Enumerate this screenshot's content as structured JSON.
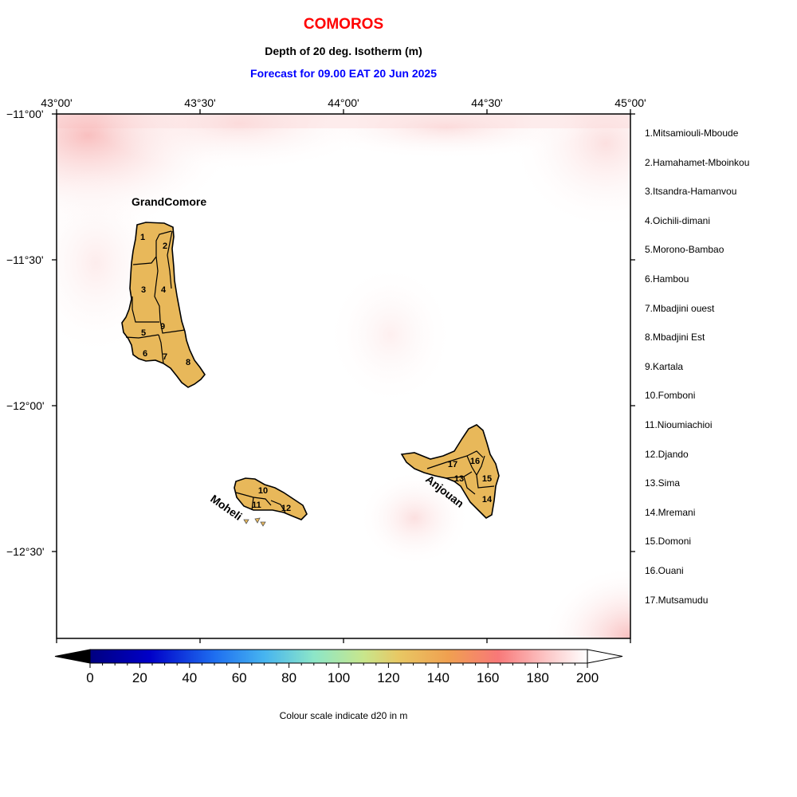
{
  "title": "COMOROS",
  "subtitle": "Depth of 20 deg. Isotherm (m)",
  "forecast": "Forecast for  09.00 EAT 20 Jun 2025",
  "colors": {
    "title": "#ff0000",
    "forecast": "#0000ff",
    "land": "#e8b85a",
    "background": "#ffffff"
  },
  "lon_labels": [
    "43°00'",
    "43°30'",
    "44°00'",
    "44°30'",
    "45°00'"
  ],
  "lat_labels": [
    "−11°00'",
    "−11°30'",
    "−12°00'",
    "−12°30'"
  ],
  "islands": [
    "GrandComore",
    "Moheli",
    "Anjouan"
  ],
  "regions": [
    "1.Mitsamiouli-Mboude",
    "2.Hamahamet-Mboinkou",
    "3.Itsandra-Hamanvou",
    "4.Oichili-dimani",
    "5.Morono-Bambao",
    "6.Hambou",
    "7.Mbadjini ouest",
    "8.Mbadjini Est",
    "9.Kartala",
    "10.Fomboni",
    "11.Nioumiachioi",
    "12.Djando",
    "13.Sima",
    "14.Mremani",
    "15.Domoni",
    "16.Ouani",
    "17.Mutsamudu"
  ],
  "region_numbers": [
    "1",
    "2",
    "3",
    "4",
    "5",
    "6",
    "7",
    "8",
    "9",
    "10",
    "11",
    "12",
    "13",
    "14",
    "15",
    "16",
    "17"
  ],
  "colorbar": {
    "ticks": [
      "0",
      "20",
      "40",
      "60",
      "80",
      "100",
      "120",
      "140",
      "160",
      "180",
      "200"
    ],
    "caption": "Colour scale indicate d20 in m",
    "min": 0,
    "max": 200
  }
}
